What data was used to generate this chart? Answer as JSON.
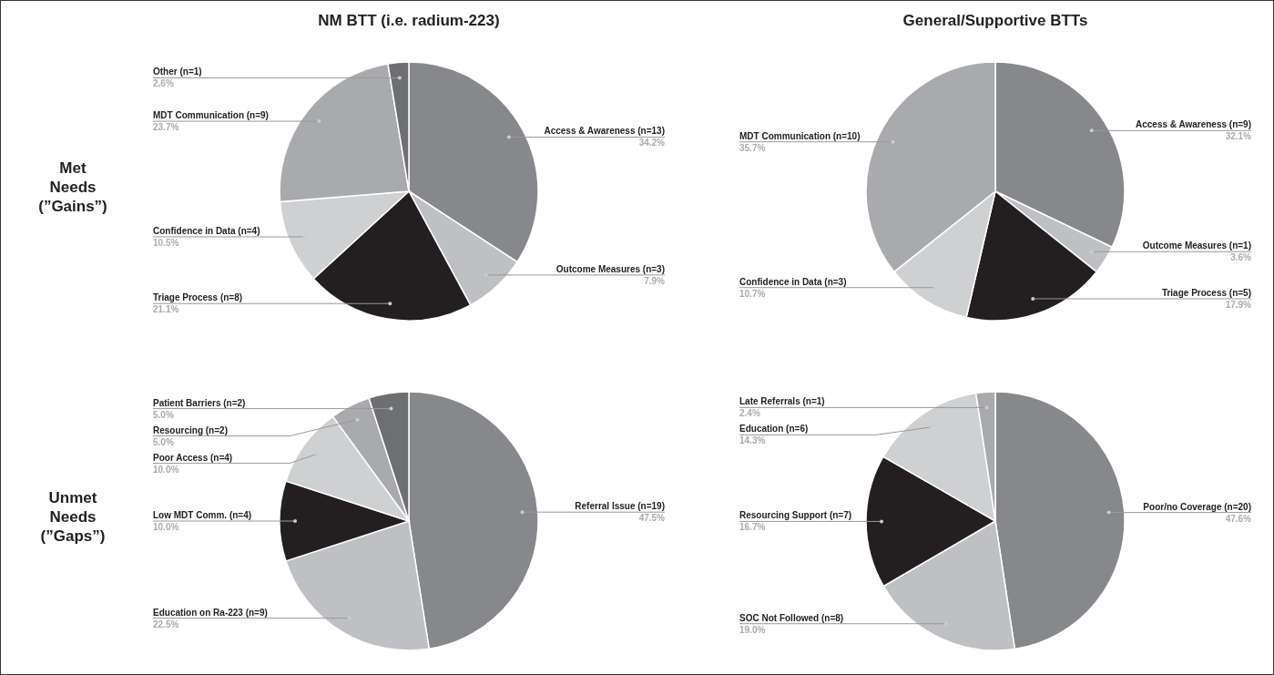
{
  "chart_data": [
    {
      "type": "pie",
      "title": "NM BTT (i.e. radium-223)",
      "ylabel": "Met Needs (”Gains”)",
      "categories": [
        "Access & Awareness (n=13)",
        "Outcome Measures (n=3)",
        "Triage Process (n=8)",
        "Confidence in Data (n=4)",
        "MDT Communication (n=9)",
        "Other (n=1)"
      ],
      "values": [
        34.2,
        7.9,
        21.1,
        10.5,
        23.7,
        2.6
      ],
      "value_labels": [
        "34.2%",
        "7.9%",
        "21.1%",
        "10.5%",
        "23.7%",
        "2.6%"
      ],
      "colors": [
        "#87888c",
        "#bfc0c3",
        "#231f20",
        "#cfd0d2",
        "#a9aaad",
        "#6e6f73"
      ]
    },
    {
      "type": "pie",
      "title": "General/Supportive BTTs",
      "categories": [
        "Access & Awareness (n=9)",
        "Outcome Measures (n=1)",
        "Triage Process (n=5)",
        "Confidence in Data (n=3)",
        "MDT Communication (n=10)"
      ],
      "values": [
        32.1,
        3.6,
        17.9,
        10.7,
        35.7
      ],
      "value_labels": [
        "32.1%",
        "3.6%",
        "17.9%",
        "10.7%",
        "35.7%"
      ],
      "colors": [
        "#87888c",
        "#bfc0c3",
        "#231f20",
        "#cfd0d2",
        "#a9aaad"
      ]
    },
    {
      "type": "pie",
      "ylabel": "Unmet Needs (”Gaps”)",
      "categories": [
        "Referral Issue (n=19)",
        "Education on Ra-223 (n=9)",
        "Low MDT Comm. (n=4)",
        "Poor Access (n=4)",
        "Resourcing (n=2)",
        "Patient Barriers (n=2)"
      ],
      "values": [
        47.5,
        22.5,
        10.0,
        10.0,
        5.0,
        5.0
      ],
      "value_labels": [
        "47.5%",
        "22.5%",
        "10.0%",
        "10.0%",
        "5.0%",
        "5.0%"
      ],
      "colors": [
        "#87888c",
        "#bfc0c3",
        "#231f20",
        "#cfd0d2",
        "#a9aaad",
        "#6e6f73"
      ]
    },
    {
      "type": "pie",
      "categories": [
        "Poor/no Coverage (n=20)",
        "SOC Not Followed (n=8)",
        "Resourcing Support (n=7)",
        "Education (n=6)",
        "Late Referrals (n=1)"
      ],
      "values": [
        47.6,
        19.0,
        16.7,
        14.3,
        2.4
      ],
      "value_labels": [
        "47.6%",
        "19.0%",
        "16.7%",
        "14.3%",
        "2.4%"
      ],
      "colors": [
        "#87888c",
        "#bfc0c3",
        "#231f20",
        "#cfd0d2",
        "#a9aaad"
      ]
    }
  ]
}
